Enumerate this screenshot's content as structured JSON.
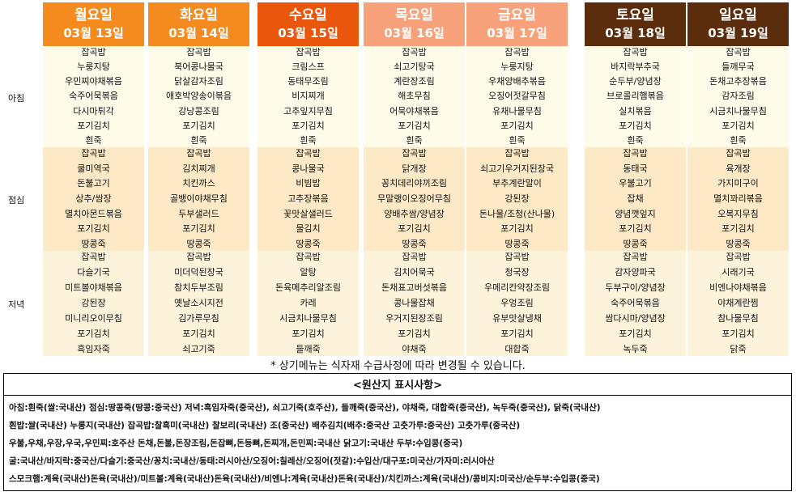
{
  "meal_labels": {
    "breakfast": "아침",
    "lunch": "점심",
    "dinner": "저녁"
  },
  "days": [
    {
      "day": "월요일",
      "date": "03월 13일",
      "color": "#f58a1f",
      "breakfast": [
        "잡곡밥",
        "누룽지탕",
        "우민찌야채볶음",
        "숙주어묵볶음",
        "다시마튀각",
        "포기김치",
        "흰죽"
      ],
      "lunch": [
        "잡곡밥",
        "쿨미역국",
        "돈불고기",
        "상추/쌈장",
        "멸치아몬드볶음",
        "포기김치",
        "땅콩죽"
      ],
      "dinner": [
        "잡곡밥",
        "다슬기국",
        "미트볼야채볶음",
        "강된장",
        "미니리오이무침",
        "포기김치",
        "흑임자죽"
      ]
    },
    {
      "day": "화요일",
      "date": "03월 14일",
      "color": "#f58a1f",
      "breakfast": [
        "잡곡밥",
        "북어콩나물국",
        "닭살감자조림",
        "애호박양송이볶음",
        "강낭콩조림",
        "포기김치",
        "흰죽"
      ],
      "lunch": [
        "잡곡밥",
        "김치찌개",
        "치킨까스",
        "골뱅이야채무침",
        "두부샐러드",
        "포기김치",
        "땅콩죽"
      ],
      "dinner": [
        "잡곡밥",
        "미더덕된장국",
        "참치두부조림",
        "옛날소시지전",
        "김가루무침",
        "포기김치",
        "쇠고기죽"
      ]
    },
    {
      "day": "수요일",
      "date": "03월 15일",
      "color": "#e9560c",
      "breakfast": [
        "잡곡밥",
        "크림스프",
        "동태무조림",
        "비지찌개",
        "고추잎지무침",
        "포기김치",
        "흰죽"
      ],
      "lunch": [
        "잡곡밥",
        "콩나물국",
        "비빔밥",
        "고추장볶음",
        "꽃맛살샐러드",
        "물김치",
        "땅콩죽"
      ],
      "dinner": [
        "잡곡밥",
        "알탕",
        "돈육메추리알조림",
        "카레",
        "시금치나물무침",
        "포기김치",
        "들깨죽"
      ]
    },
    {
      "day": "목요일",
      "date": "03월 16일",
      "color": "#f7a27a",
      "breakfast": [
        "잡곡밥",
        "쇠고기탕국",
        "계란장조림",
        "해초무침",
        "어묵야채볶음",
        "포기김치",
        "흰죽"
      ],
      "lunch": [
        "잡곡밥",
        "닭개장",
        "꽁치데리야끼조림",
        "무말랭이오징어무침",
        "양배추쌈/양념장",
        "포기김치",
        "땅콩죽"
      ],
      "dinner": [
        "잡곡밥",
        "김치어묵국",
        "돈채표고버섯볶음",
        "콩나물잡채",
        "우거지된장조림",
        "포기김치",
        "야채죽"
      ]
    },
    {
      "day": "금요일",
      "date": "03월 17일",
      "color": "#f7a27a",
      "breakfast": [
        "잡곡밥",
        "누룽지탕",
        "우채양배추볶음",
        "오징어젓갈무침",
        "유채나물무침",
        "포기김치",
        "흰죽"
      ],
      "lunch": [
        "잡곡밥",
        "쇠고기우거지된장국",
        "부추계란말이",
        "강된장",
        "돈나물/조청(산나물)",
        "포기김치",
        "땅콩죽"
      ],
      "dinner": [
        "잡곡밥",
        "청국장",
        "우메리칸약장조림",
        "우엉조림",
        "유부맛살냉채",
        "포기김치",
        "대합죽"
      ]
    },
    {
      "day": "토요일",
      "date": "03월 18일",
      "color": "#5b2d0c",
      "breakfast": [
        "잡곡밥",
        "바지락부추국",
        "순두부/양념장",
        "브로콜리햄볶음",
        "실치볶음",
        "포기김치",
        "흰죽"
      ],
      "lunch": [
        "잡곡밥",
        "동태국",
        "우불고기",
        "잡채",
        "양념깻잎지",
        "포기김치",
        "땅콩죽"
      ],
      "dinner": [
        "잡곡밥",
        "감자양파국",
        "두부구이/양념장",
        "숙주어묵볶음",
        "쌈다시마/양념장",
        "포기김치",
        "녹두죽"
      ]
    },
    {
      "day": "일요일",
      "date": "03월 19일",
      "color": "#5b2d0c",
      "breakfast": [
        "잡곡밥",
        "들깨무국",
        "돈채고추장볶음",
        "감자조림",
        "시금치나물무침",
        "포기김치",
        "흰죽"
      ],
      "lunch": [
        "잡곡밥",
        "육개장",
        "가지미구이",
        "멸치꽈리볶음",
        "오복지무침",
        "포기김치",
        "땅콩죽"
      ],
      "dinner": [
        "잡곡밥",
        "시래기국",
        "비엔나야채볶음",
        "야채계란찜",
        "참나물무침",
        "포기김치",
        "닭죽"
      ]
    }
  ],
  "notice": "* 상기메뉴는 식자재 수급사정에 따라 변경될 수 있습니다.",
  "origin": {
    "title": "<원산지 표시사항>",
    "lines": [
      "아침:흰죽(쌀:국내산) 점심:땅콩죽(땅콩:중국산) 저녁:흑임자죽(중국산), 쇠고기죽(호주산), 들깨죽(중국산), 야채죽, 대합죽(중국산), 녹두죽(중국산), 닭죽(국내산)",
      "흰밥:쌀(국내산) 누룽지(국내산) 잡곡밥:찰흑미(국내산) 찰보리(국내산) 조(중국산) 배추김치(배추:중국산 고춧가루:중국산) 고춧가루(중국산)",
      "우불,우채,우장,우국,우민찌:호주산 돈채,돈불,돈장조림,돈잡뼈,돈등뼈,돈찌개,돈민찌:국내산 닭고기:국내산 두부:수입콩(중국)",
      "굴:국내산/바지락:중국산/다슬기:중국산/꽁치:국내산/동태:러시아산/오징어:칠레산/오징어(젓갈):수입산/대구포:미국산/가자미:러시아산",
      "스모크햄:계육(국내산)돈육(국내산)/미트볼:계육(국내산)돈육(국내산)/비엔나:계육(국내산)돈육(국내산)/치킨까스:계육(국내산)/콩비지:미국산/순두부:수입콩(중국)"
    ]
  }
}
